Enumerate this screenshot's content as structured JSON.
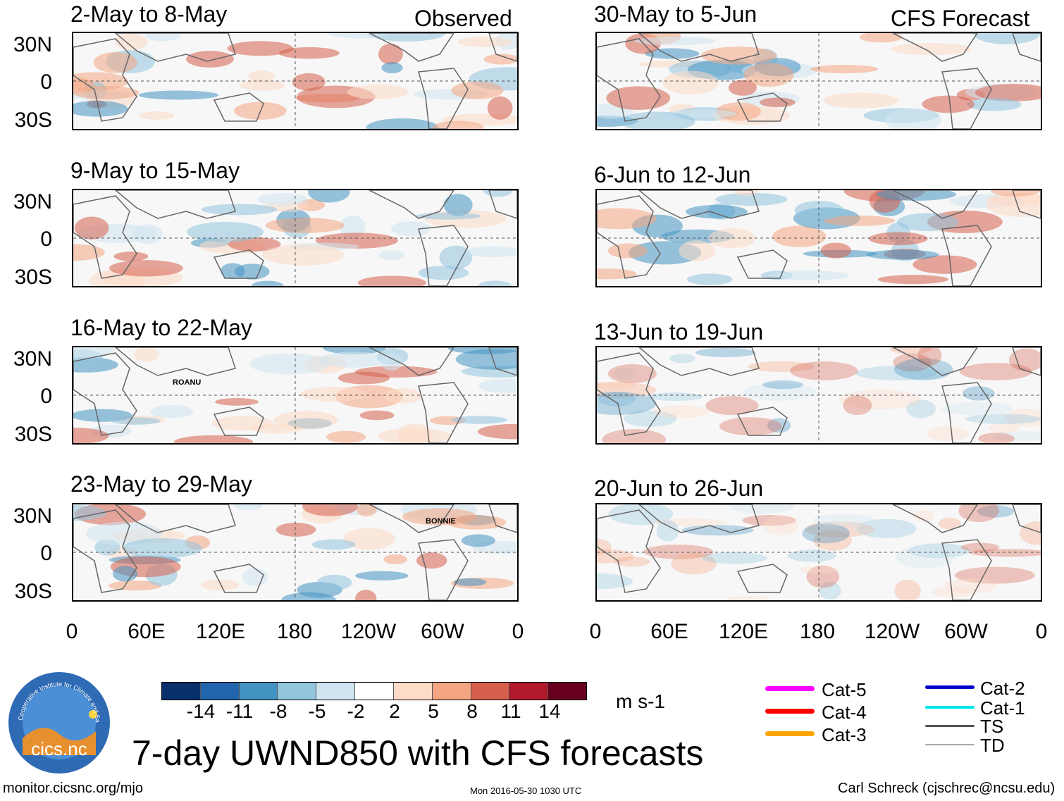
{
  "observed_label": "Observed",
  "forecast_label": "CFS Forecast",
  "panels": {
    "obs": [
      "2-May to 8-May",
      "9-May to 15-May",
      "16-May to 22-May",
      "23-May to 29-May"
    ],
    "fcst": [
      "30-May to 5-Jun",
      "6-Jun to 12-Jun",
      "13-Jun to 19-Jun",
      "20-Jun to 26-Jun"
    ]
  },
  "lat_labels": [
    "30N",
    "0",
    "30S"
  ],
  "lon_labels": [
    "0",
    "60E",
    "120E",
    "180",
    "120W",
    "60W",
    "0"
  ],
  "storms": {
    "roanu": "ROANU",
    "bonnie": "BONNIE"
  },
  "colorbar": {
    "ticks": [
      "-14",
      "-11",
      "-8",
      "-5",
      "-2",
      "2",
      "5",
      "8",
      "11",
      "14"
    ],
    "colors": [
      "#08306b",
      "#2166ac",
      "#4393c3",
      "#92c5de",
      "#d1e5f0",
      "#ffffff",
      "#fddbc7",
      "#f4a582",
      "#d6604d",
      "#b2182b",
      "#67001f"
    ],
    "unit": "m s-1"
  },
  "legend": {
    "cat5": {
      "label": "Cat-5",
      "color": "#ff00ff"
    },
    "cat4": {
      "label": "Cat-4",
      "color": "#ff0000"
    },
    "cat3": {
      "label": "Cat-3",
      "color": "#ffa500"
    },
    "cat2": {
      "label": "Cat-2",
      "color": "#0000cc"
    },
    "cat1": {
      "label": "Cat-1",
      "color": "#00e5ee"
    },
    "ts": {
      "label": "TS",
      "color": "#555555"
    },
    "td": {
      "label": "TD",
      "color": "#aaaaaa"
    }
  },
  "title": "7-day UWND850 with CFS forecasts",
  "footer": {
    "left": "monitor.cicsnc.org/mjo",
    "center": "Mon 2016-05-30 1030 UTC",
    "right": "Carl Schreck (cjschrec@ncsu.edu)"
  },
  "logo": {
    "arc_text": "Cooperative Institute for Climate and Satellites",
    "name": "cics.nc"
  }
}
